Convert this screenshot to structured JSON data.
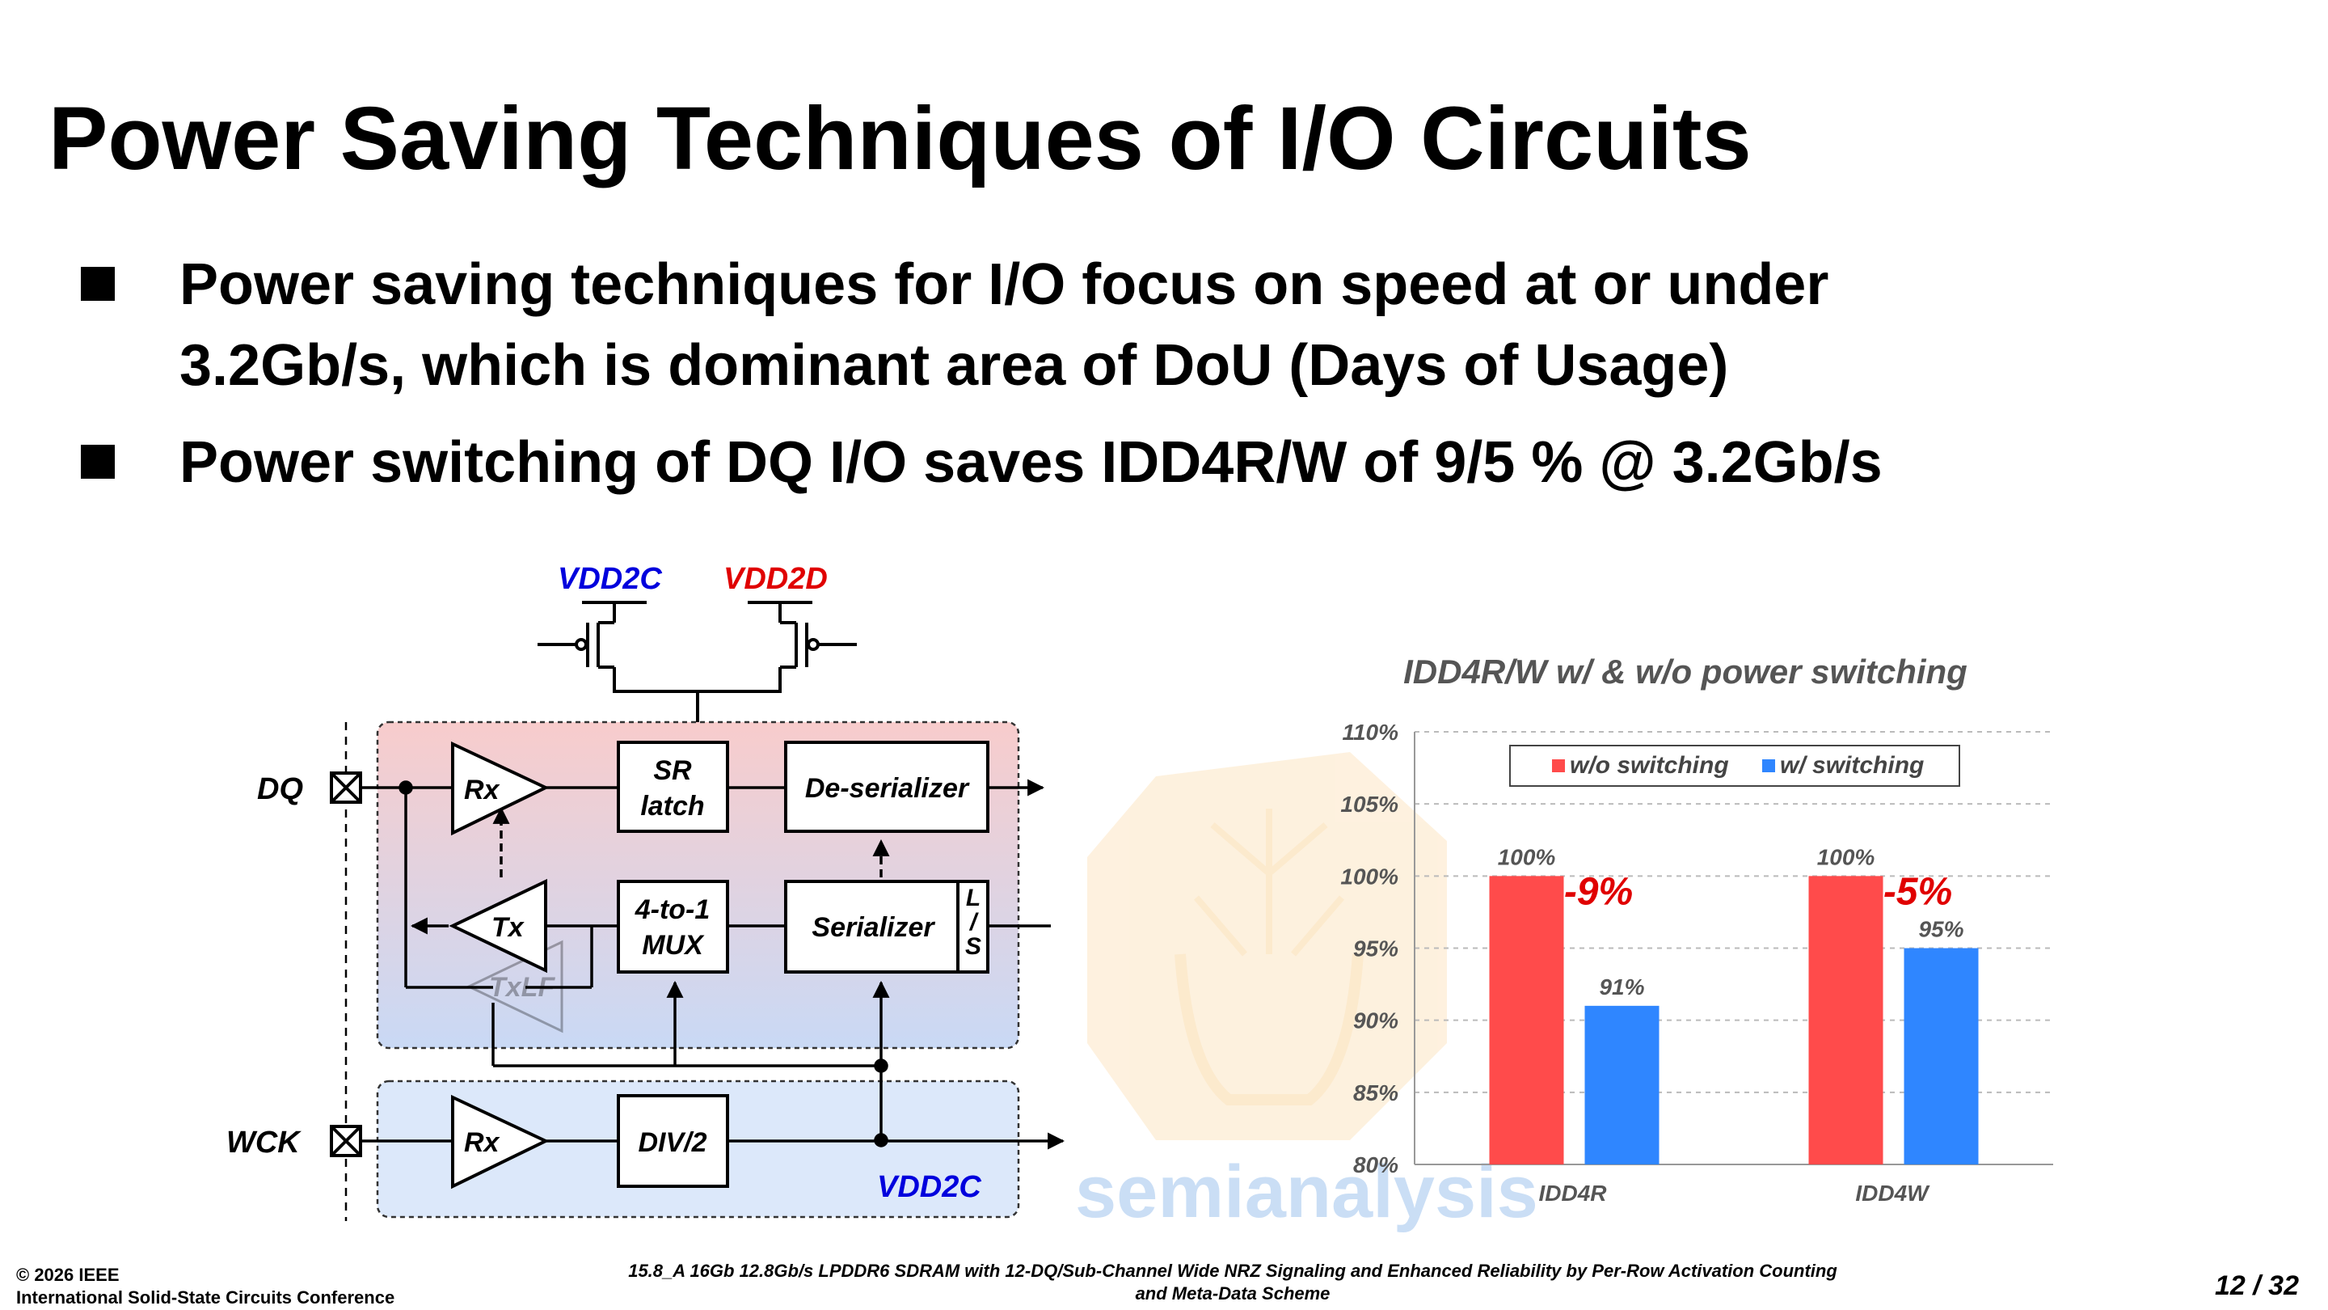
{
  "slide": {
    "title": "Power Saving Techniques of I/O Circuits",
    "bullets": [
      [
        "Power saving techniques for I/O focus on speed at or under",
        "3.2Gb/s, which is dominant area of DoU (Days of Usage)"
      ],
      [
        "Power switching of DQ I/O saves IDD4R/W of 9/5 % @ 3.2Gb/s"
      ]
    ]
  },
  "circuit": {
    "supplies": {
      "vdd2c": "VDD2C",
      "vdd2d": "VDD2D",
      "vdd2c_bottom": "VDD2C"
    },
    "pins": {
      "dq": "DQ",
      "wck": "WCK"
    },
    "blocks": {
      "rx": "Rx",
      "sr_latch": [
        "SR",
        "latch"
      ],
      "deserializer": "De-serializer",
      "tx": "Tx",
      "mux": [
        "4-to-1",
        "MUX"
      ],
      "serializer": "Serializer",
      "ls": [
        "L",
        "/",
        "S"
      ],
      "wck_rx": "Rx",
      "div2": "DIV/2"
    },
    "colors": {
      "vdd2c": "#0000dd",
      "vdd2d": "#e00000",
      "upper_region_top": "#f8cccc",
      "upper_region_bottom": "#c9d9f5",
      "lower_region": "#dce8fa"
    }
  },
  "watermark": {
    "text": "semianalysis",
    "faded": "TxLF"
  },
  "chart_data": {
    "type": "bar",
    "title": "IDD4R/W w/ & w/o power switching",
    "categories": [
      "IDD4R",
      "IDD4W"
    ],
    "series": [
      {
        "name": "w/o switching",
        "color": "#ff4b4b",
        "values": [
          100,
          100
        ],
        "labels": [
          "100%",
          "100%"
        ]
      },
      {
        "name": "w/ switching",
        "color": "#2f86ff",
        "values": [
          91,
          95
        ],
        "labels": [
          "91%",
          "95%"
        ]
      }
    ],
    "annotations": [
      "-9%",
      "-5%"
    ],
    "ylim": [
      80,
      110
    ],
    "yticks": [
      80,
      85,
      90,
      95,
      100,
      105,
      110
    ],
    "ytick_labels": [
      "80%",
      "85%",
      "90%",
      "95%",
      "100%",
      "105%",
      "110%"
    ],
    "grid": true,
    "legend": "top"
  },
  "footer": {
    "copyright": "© 2026 IEEE",
    "conference": "International Solid-State Circuits Conference",
    "paper": [
      "15.8_A 16Gb 12.8Gb/s LPDDR6 SDRAM with 12-DQ/Sub-Channel Wide NRZ Signaling and Enhanced Reliability by Per-Row Activation Counting",
      "and Meta-Data Scheme"
    ],
    "page": "12 / 32"
  }
}
